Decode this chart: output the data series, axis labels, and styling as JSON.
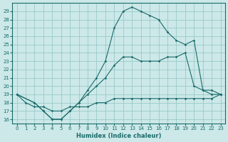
{
  "xlabel": "Humidex (Indice chaleur)",
  "xlim": [
    -0.5,
    23.5
  ],
  "ylim": [
    15.5,
    30.0
  ],
  "yticks": [
    16,
    17,
    18,
    19,
    20,
    21,
    22,
    23,
    24,
    25,
    26,
    27,
    28,
    29
  ],
  "xticks": [
    0,
    1,
    2,
    3,
    4,
    5,
    6,
    7,
    8,
    9,
    10,
    11,
    12,
    13,
    14,
    15,
    16,
    17,
    18,
    19,
    20,
    21,
    22,
    23
  ],
  "bg_color": "#cce8e8",
  "line_color": "#1a6b6b",
  "line1_x": [
    0,
    1,
    2,
    3,
    4,
    5,
    6,
    7,
    8,
    9,
    10,
    11,
    12,
    13,
    14,
    15,
    16,
    17,
    18,
    19,
    20,
    21,
    22,
    23
  ],
  "line1_y": [
    19.0,
    18.0,
    17.5,
    17.5,
    17.0,
    17.0,
    17.5,
    17.5,
    17.5,
    18.0,
    18.0,
    18.5,
    18.5,
    18.5,
    18.5,
    18.5,
    18.5,
    18.5,
    18.5,
    18.5,
    18.5,
    18.5,
    18.5,
    19.0
  ],
  "line2_x": [
    0,
    2,
    3,
    4,
    5,
    6,
    7,
    8,
    9,
    10,
    11,
    12,
    13,
    14,
    15,
    16,
    17,
    18,
    19,
    20,
    21,
    22,
    23
  ],
  "line2_y": [
    19.0,
    18.0,
    17.0,
    16.0,
    16.0,
    17.0,
    18.0,
    19.0,
    20.0,
    21.0,
    22.5,
    23.5,
    23.5,
    23.0,
    23.0,
    23.0,
    23.5,
    23.5,
    24.0,
    20.0,
    19.5,
    19.5,
    19.0
  ],
  "line3_x": [
    0,
    2,
    3,
    4,
    5,
    6,
    7,
    8,
    9,
    10,
    11,
    12,
    13,
    14,
    15,
    16,
    17,
    18,
    19,
    20,
    21,
    22,
    23
  ],
  "line3_y": [
    19.0,
    18.0,
    17.0,
    16.0,
    16.0,
    17.0,
    18.0,
    19.5,
    21.0,
    23.0,
    27.0,
    29.0,
    29.5,
    29.0,
    28.5,
    28.0,
    26.5,
    25.5,
    25.0,
    25.5,
    19.5,
    19.0,
    19.0
  ]
}
